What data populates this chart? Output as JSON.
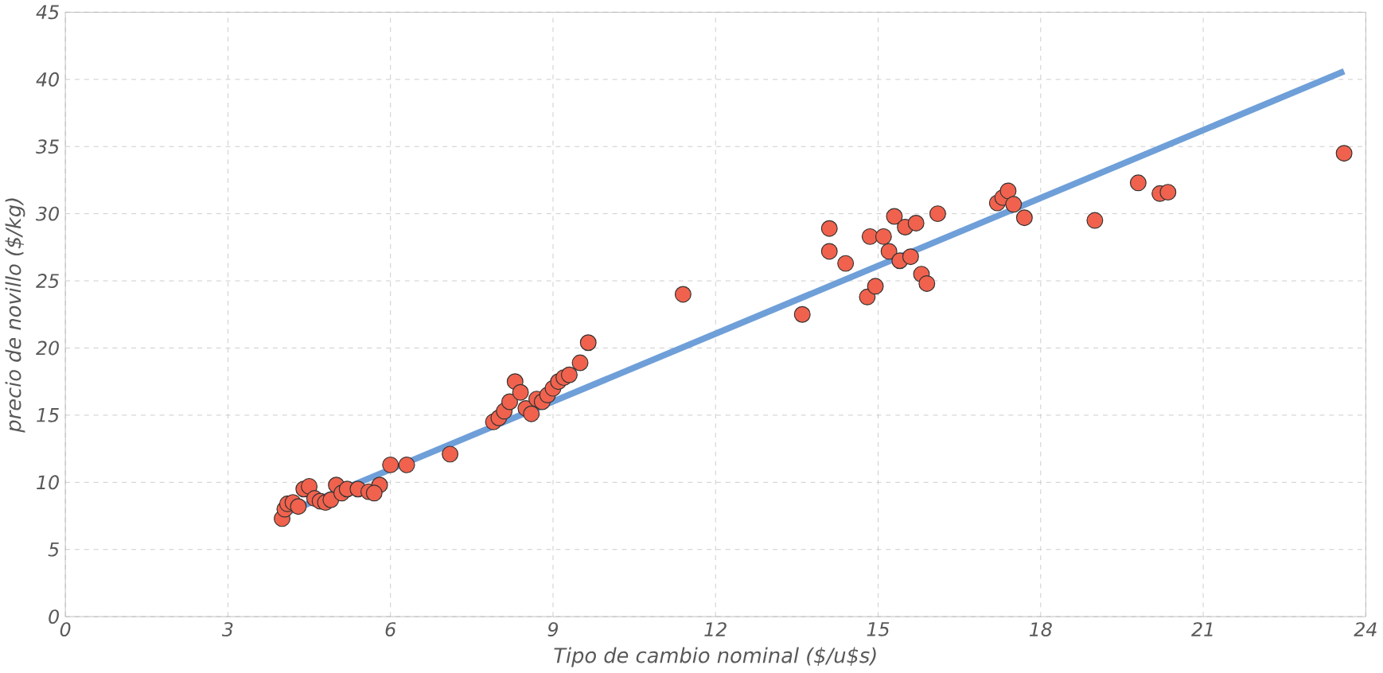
{
  "chart_data": {
    "type": "scatter",
    "xlabel": "Tipo de cambio nominal ($/u$s)",
    "ylabel": "precio de novillo ($/kg)",
    "xlim": [
      0,
      24
    ],
    "ylim": [
      0,
      45
    ],
    "xticks": [
      0,
      3,
      6,
      9,
      12,
      15,
      18,
      21,
      24
    ],
    "yticks": [
      0,
      5,
      10,
      15,
      20,
      25,
      30,
      35,
      40,
      45
    ],
    "grid": true,
    "marker": "circle",
    "series": [
      {
        "type": "line",
        "color": "#6f9fd8",
        "marker": "none",
        "x": [
          4.0,
          23.6
        ],
        "values": [
          7.6,
          40.6
        ]
      },
      {
        "color": "#f0624d",
        "x": [
          4.0,
          4.05,
          4.1,
          4.2,
          4.3,
          4.4,
          4.5,
          4.6,
          4.7,
          4.8,
          4.9,
          5.0,
          5.1,
          5.2,
          5.4,
          5.6,
          5.8,
          5.7,
          6.0,
          6.3,
          7.1,
          7.9,
          8.0,
          8.1,
          8.2,
          8.3,
          8.4,
          8.5,
          8.6,
          8.7,
          8.8,
          8.9,
          9.0,
          9.1,
          9.2,
          9.3,
          9.5,
          9.65,
          11.4,
          13.6,
          14.1,
          14.1,
          14.4,
          14.8,
          14.85,
          14.95,
          15.1,
          15.2,
          15.3,
          15.4,
          15.5,
          15.6,
          15.7,
          15.8,
          15.9,
          16.1,
          17.2,
          17.3,
          17.4,
          17.5,
          17.7,
          19.0,
          19.8,
          20.2,
          20.35,
          23.6
        ],
        "values": [
          7.3,
          8.0,
          8.4,
          8.5,
          8.2,
          9.5,
          9.7,
          8.8,
          8.6,
          8.5,
          8.7,
          9.8,
          9.2,
          9.5,
          9.5,
          9.3,
          9.8,
          9.2,
          11.3,
          11.3,
          12.1,
          14.5,
          14.8,
          15.3,
          16.0,
          17.5,
          16.7,
          15.5,
          15.1,
          16.2,
          16.0,
          16.5,
          17.0,
          17.5,
          17.8,
          18.0,
          18.9,
          20.4,
          24.0,
          22.5,
          27.2,
          28.9,
          26.3,
          23.8,
          28.3,
          24.6,
          28.3,
          27.2,
          29.8,
          26.5,
          29.0,
          26.8,
          29.3,
          25.5,
          24.8,
          30.0,
          30.8,
          31.2,
          31.7,
          30.7,
          29.7,
          29.5,
          32.3,
          31.5,
          31.6,
          34.5
        ]
      }
    ]
  }
}
